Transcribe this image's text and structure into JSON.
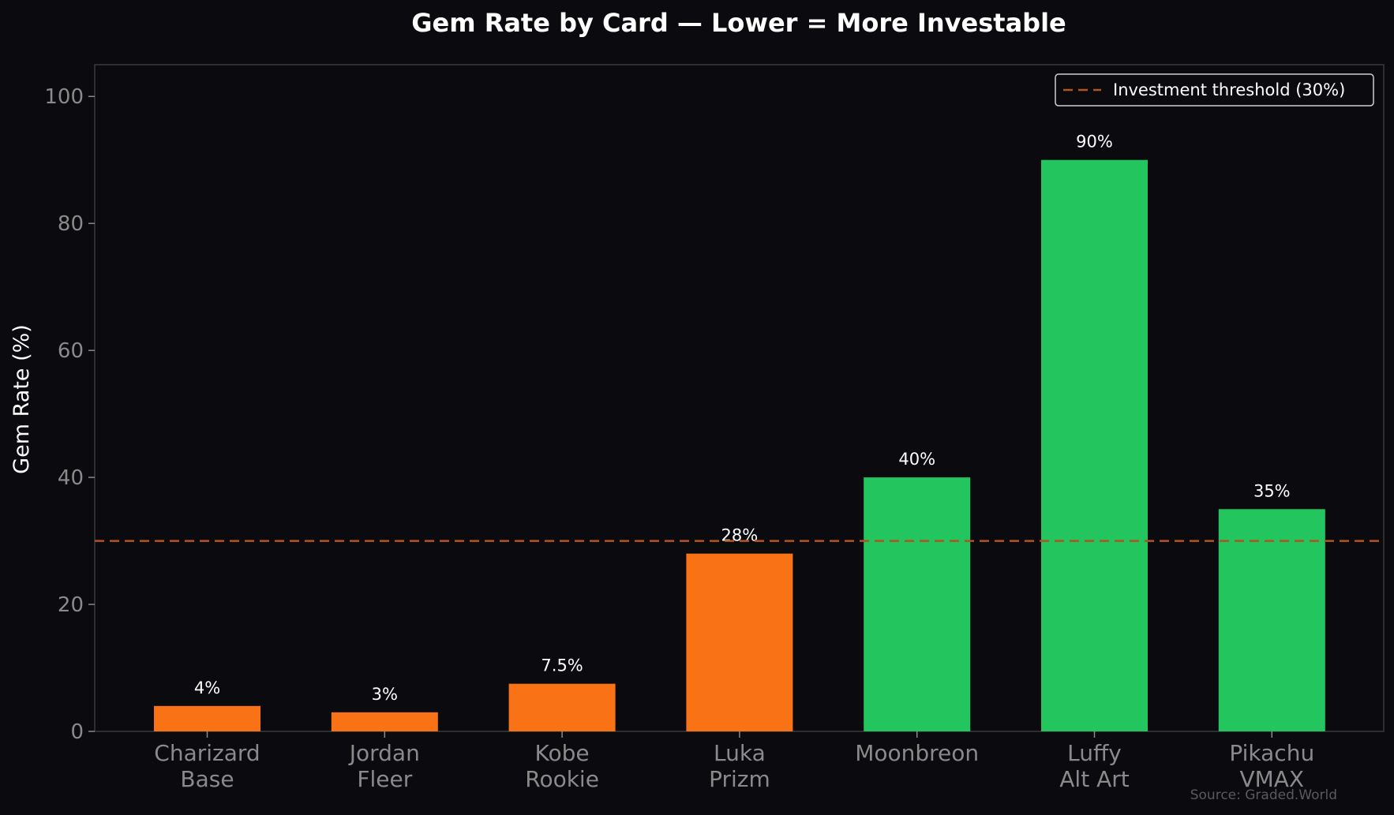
{
  "chart_data": {
    "type": "bar",
    "title": "Gem Rate by Card — Lower = More Investable",
    "ylabel": "Gem Rate (%)",
    "xlabel": "",
    "ylim": [
      0,
      105
    ],
    "yticks": [
      "0",
      "20",
      "40",
      "60",
      "80",
      "100"
    ],
    "categories": [
      [
        "Charizard",
        "Base"
      ],
      [
        "Jordan",
        "Fleer"
      ],
      [
        "Kobe",
        "Rookie"
      ],
      [
        "Luka",
        "Prizm"
      ],
      [
        "Moonbreon"
      ],
      [
        "Luffy",
        "Alt Art"
      ],
      [
        "Pikachu",
        "VMAX"
      ]
    ],
    "values": [
      4,
      3,
      7.5,
      28,
      40,
      90,
      35
    ],
    "value_labels": [
      "4%",
      "3%",
      "7.5%",
      "28%",
      "40%",
      "90%",
      "35%"
    ],
    "bar_colors": [
      "#f97316",
      "#f97316",
      "#f97316",
      "#f97316",
      "#22c55e",
      "#22c55e",
      "#22c55e"
    ],
    "threshold": {
      "value": 30,
      "label": "Investment threshold (30%)",
      "color": "#b4531d"
    },
    "legend_position": "top-right",
    "grid": false,
    "source": "Source: Graded.World"
  }
}
